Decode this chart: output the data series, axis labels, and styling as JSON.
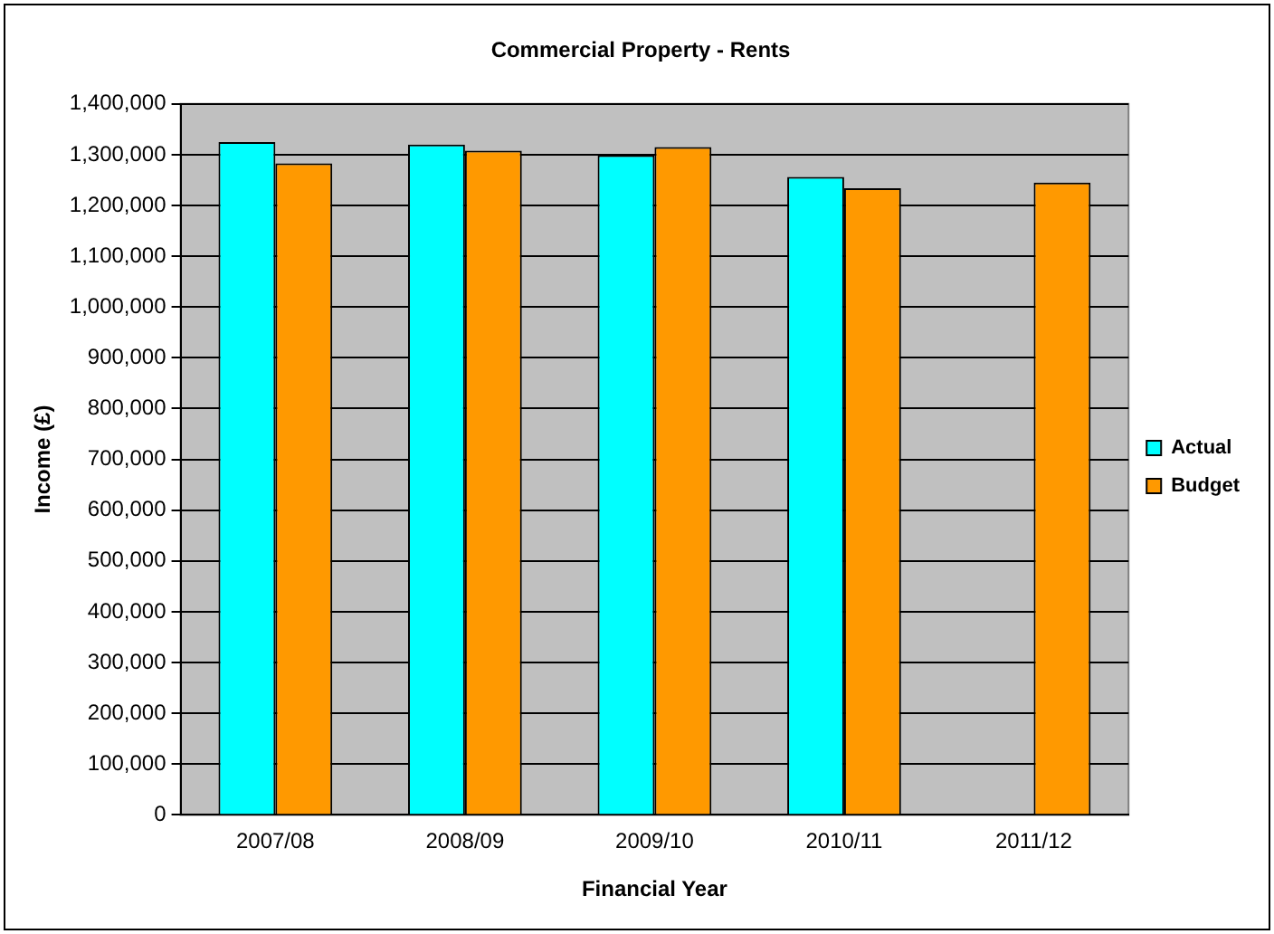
{
  "chart_data": {
    "type": "bar",
    "title": "Commercial Property - Rents",
    "xlabel": "Financial Year",
    "ylabel": "Income (£)",
    "categories": [
      "2007/08",
      "2008/09",
      "2009/10",
      "2010/11",
      "2011/12"
    ],
    "series": [
      {
        "name": "Actual",
        "color": "#00ffff",
        "values": [
          1325000,
          1320000,
          1299000,
          1256000,
          null
        ]
      },
      {
        "name": "Budget",
        "color": "#ff9900",
        "values": [
          1283000,
          1308000,
          1315000,
          1234000,
          1245000
        ]
      }
    ],
    "ylim": [
      0,
      1400000
    ],
    "yticks": [
      0,
      {
        "value": 100000,
        "label": "100,000"
      },
      {
        "value": 200000,
        "label": "200,000"
      },
      {
        "value": 300000,
        "label": "300,000"
      },
      {
        "value": 400000,
        "label": "400,000"
      },
      {
        "value": 500000,
        "label": "500,000"
      },
      {
        "value": 600000,
        "label": "600,000"
      },
      {
        "value": 700000,
        "label": "700,000"
      },
      {
        "value": 800000,
        "label": "800,000"
      },
      {
        "value": 900000,
        "label": "900,000"
      },
      {
        "value": 1000000,
        "label": "1,000,000"
      },
      {
        "value": 1100000,
        "label": "1,100,000"
      },
      {
        "value": 1200000,
        "label": "1,200,000"
      },
      {
        "value": 1300000,
        "label": "1,300,000"
      },
      {
        "value": 1400000,
        "label": "1,400,000"
      }
    ],
    "grid": "y",
    "legend": "right"
  }
}
